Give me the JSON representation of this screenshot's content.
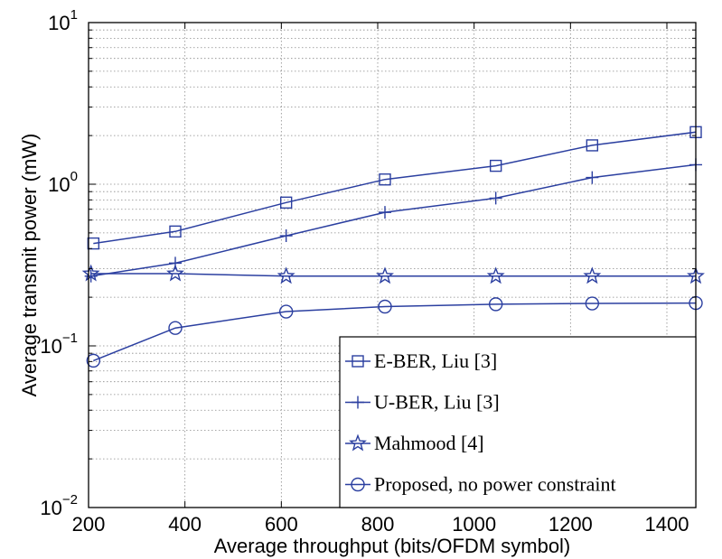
{
  "chart_data": {
    "type": "line",
    "xlabel": "Average throughput (bits/OFDM symbol)",
    "ylabel": "Average transmit power (mW)",
    "xlim": [
      200,
      1460
    ],
    "ylim": [
      0.01,
      10
    ],
    "yscale": "log",
    "grid": true,
    "legend_position": "bottom-right",
    "x_ticks": [
      200,
      400,
      600,
      800,
      1000,
      1200,
      1400
    ],
    "x_tick_labels": [
      "200",
      "400",
      "600",
      "800",
      "1000",
      "1200",
      "1400"
    ],
    "y_ticks": [
      {
        "value": 0.01,
        "base": "10",
        "exp": "−2"
      },
      {
        "value": 0.1,
        "base": "10",
        "exp": "−1"
      },
      {
        "value": 1,
        "base": "10",
        "exp": "0"
      },
      {
        "value": 10,
        "base": "10",
        "exp": "1"
      }
    ],
    "series": [
      {
        "name": "E-BER, Liu [3]",
        "marker": "square",
        "color": "#2b3fa0",
        "x": [
          210,
          380,
          610,
          815,
          1045,
          1245,
          1460
        ],
        "y": [
          0.43,
          0.51,
          0.77,
          1.07,
          1.3,
          1.74,
          2.1
        ]
      },
      {
        "name": "U-BER, Liu [3]",
        "marker": "plus",
        "color": "#2b3fa0",
        "x": [
          205,
          380,
          610,
          815,
          1045,
          1245,
          1460
        ],
        "y": [
          0.27,
          0.325,
          0.48,
          0.67,
          0.82,
          1.1,
          1.32
        ]
      },
      {
        "name": "Mahmood [4]",
        "marker": "star",
        "color": "#2b3fa0",
        "x": [
          205,
          380,
          610,
          815,
          1045,
          1245,
          1460
        ],
        "y": [
          0.28,
          0.28,
          0.27,
          0.27,
          0.27,
          0.27,
          0.27
        ]
      },
      {
        "name": "Proposed, no power constraint",
        "marker": "circle",
        "color": "#2b3fa0",
        "x": [
          210,
          380,
          610,
          815,
          1045,
          1245,
          1460
        ],
        "y": [
          0.081,
          0.129,
          0.163,
          0.175,
          0.181,
          0.183,
          0.184
        ]
      }
    ]
  }
}
